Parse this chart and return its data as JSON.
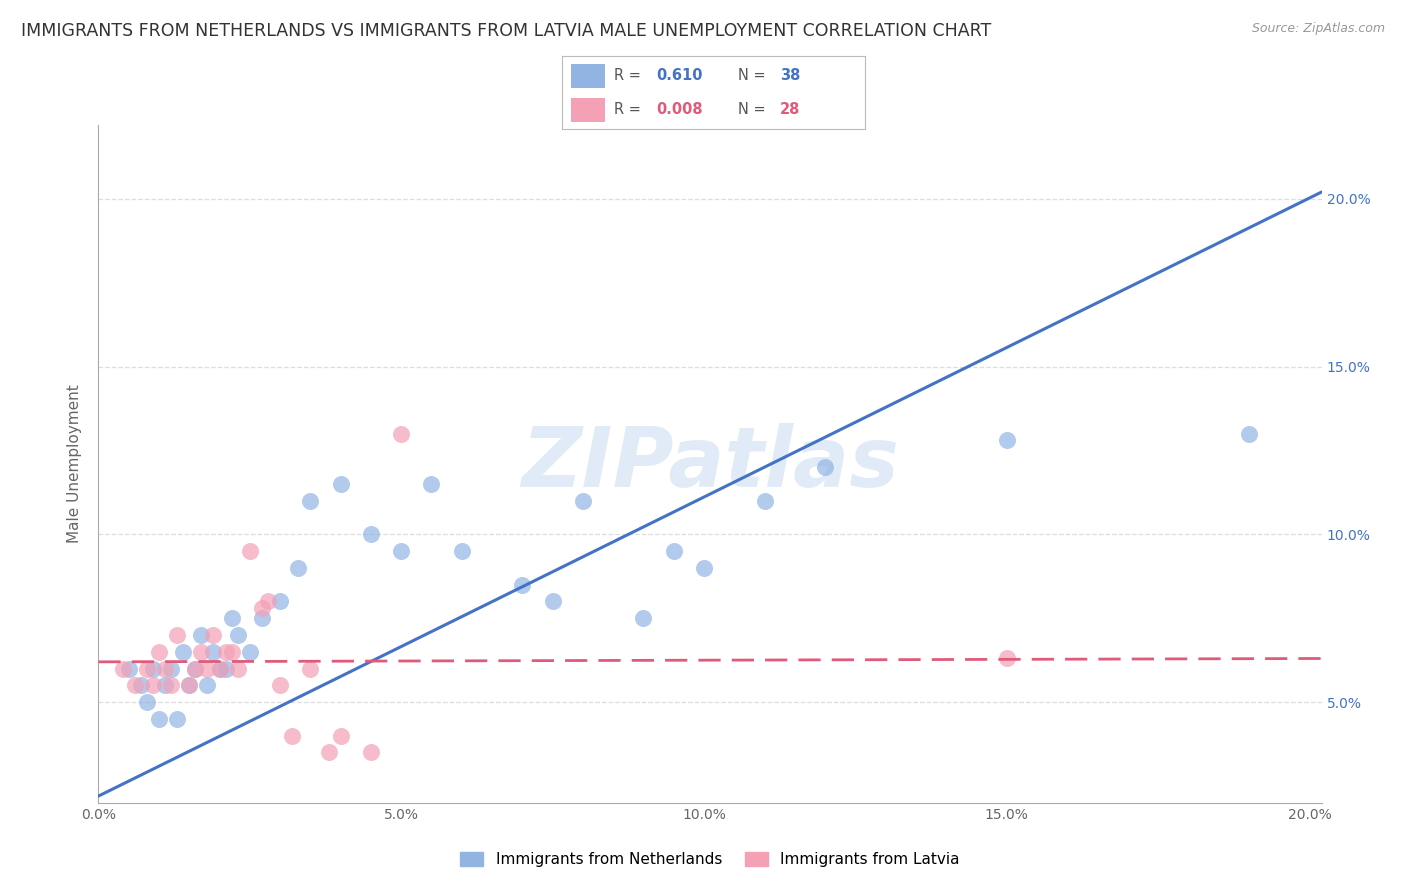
{
  "title": "IMMIGRANTS FROM NETHERLANDS VS IMMIGRANTS FROM LATVIA MALE UNEMPLOYMENT CORRELATION CHART",
  "source": "Source: ZipAtlas.com",
  "ylabel": "Male Unemployment",
  "watermark": "ZIPatlas",
  "legend_label1": "Immigrants from Netherlands",
  "legend_label2": "Immigrants from Latvia",
  "r1": 0.61,
  "n1": 38,
  "r2": 0.008,
  "n2": 28,
  "color1": "#92b4e3",
  "color2": "#f4a0b5",
  "line_color1": "#4472c4",
  "line_color2": "#e05a7a",
  "right_tick_color": "#4472c4",
  "xlim": [
    0.0,
    0.202
  ],
  "ylim": [
    0.02,
    0.222
  ],
  "xticks": [
    0.0,
    0.05,
    0.1,
    0.15,
    0.2
  ],
  "yticks": [
    0.05,
    0.1,
    0.15,
    0.2
  ],
  "background_color": "#ffffff",
  "grid_color": "#dddddd",
  "blue_line_x0": 0.0,
  "blue_line_y0": 0.022,
  "blue_line_x1": 0.202,
  "blue_line_y1": 0.202,
  "pink_line_y": 0.062,
  "blue_scatter_x": [
    0.005,
    0.007,
    0.008,
    0.009,
    0.01,
    0.011,
    0.012,
    0.013,
    0.014,
    0.015,
    0.016,
    0.017,
    0.018,
    0.019,
    0.02,
    0.021,
    0.022,
    0.023,
    0.025,
    0.027,
    0.03,
    0.033,
    0.035,
    0.04,
    0.045,
    0.05,
    0.055,
    0.06,
    0.07,
    0.075,
    0.08,
    0.09,
    0.095,
    0.1,
    0.11,
    0.12,
    0.15,
    0.19
  ],
  "blue_scatter_y": [
    0.06,
    0.055,
    0.05,
    0.06,
    0.045,
    0.055,
    0.06,
    0.045,
    0.065,
    0.055,
    0.06,
    0.07,
    0.055,
    0.065,
    0.06,
    0.06,
    0.075,
    0.07,
    0.065,
    0.075,
    0.08,
    0.09,
    0.11,
    0.115,
    0.1,
    0.095,
    0.115,
    0.095,
    0.085,
    0.08,
    0.11,
    0.075,
    0.095,
    0.09,
    0.11,
    0.12,
    0.128,
    0.13
  ],
  "pink_scatter_x": [
    0.004,
    0.006,
    0.008,
    0.009,
    0.01,
    0.011,
    0.012,
    0.013,
    0.015,
    0.016,
    0.017,
    0.018,
    0.019,
    0.02,
    0.021,
    0.022,
    0.023,
    0.025,
    0.027,
    0.028,
    0.03,
    0.032,
    0.035,
    0.038,
    0.04,
    0.045,
    0.05,
    0.15
  ],
  "pink_scatter_y": [
    0.06,
    0.055,
    0.06,
    0.055,
    0.065,
    0.06,
    0.055,
    0.07,
    0.055,
    0.06,
    0.065,
    0.06,
    0.07,
    0.06,
    0.065,
    0.065,
    0.06,
    0.095,
    0.078,
    0.08,
    0.055,
    0.04,
    0.06,
    0.035,
    0.04,
    0.035,
    0.13,
    0.063
  ],
  "title_fontsize": 12.5,
  "axis_label_fontsize": 11,
  "tick_fontsize": 10,
  "legend_fontsize": 11,
  "marker_size": 150
}
